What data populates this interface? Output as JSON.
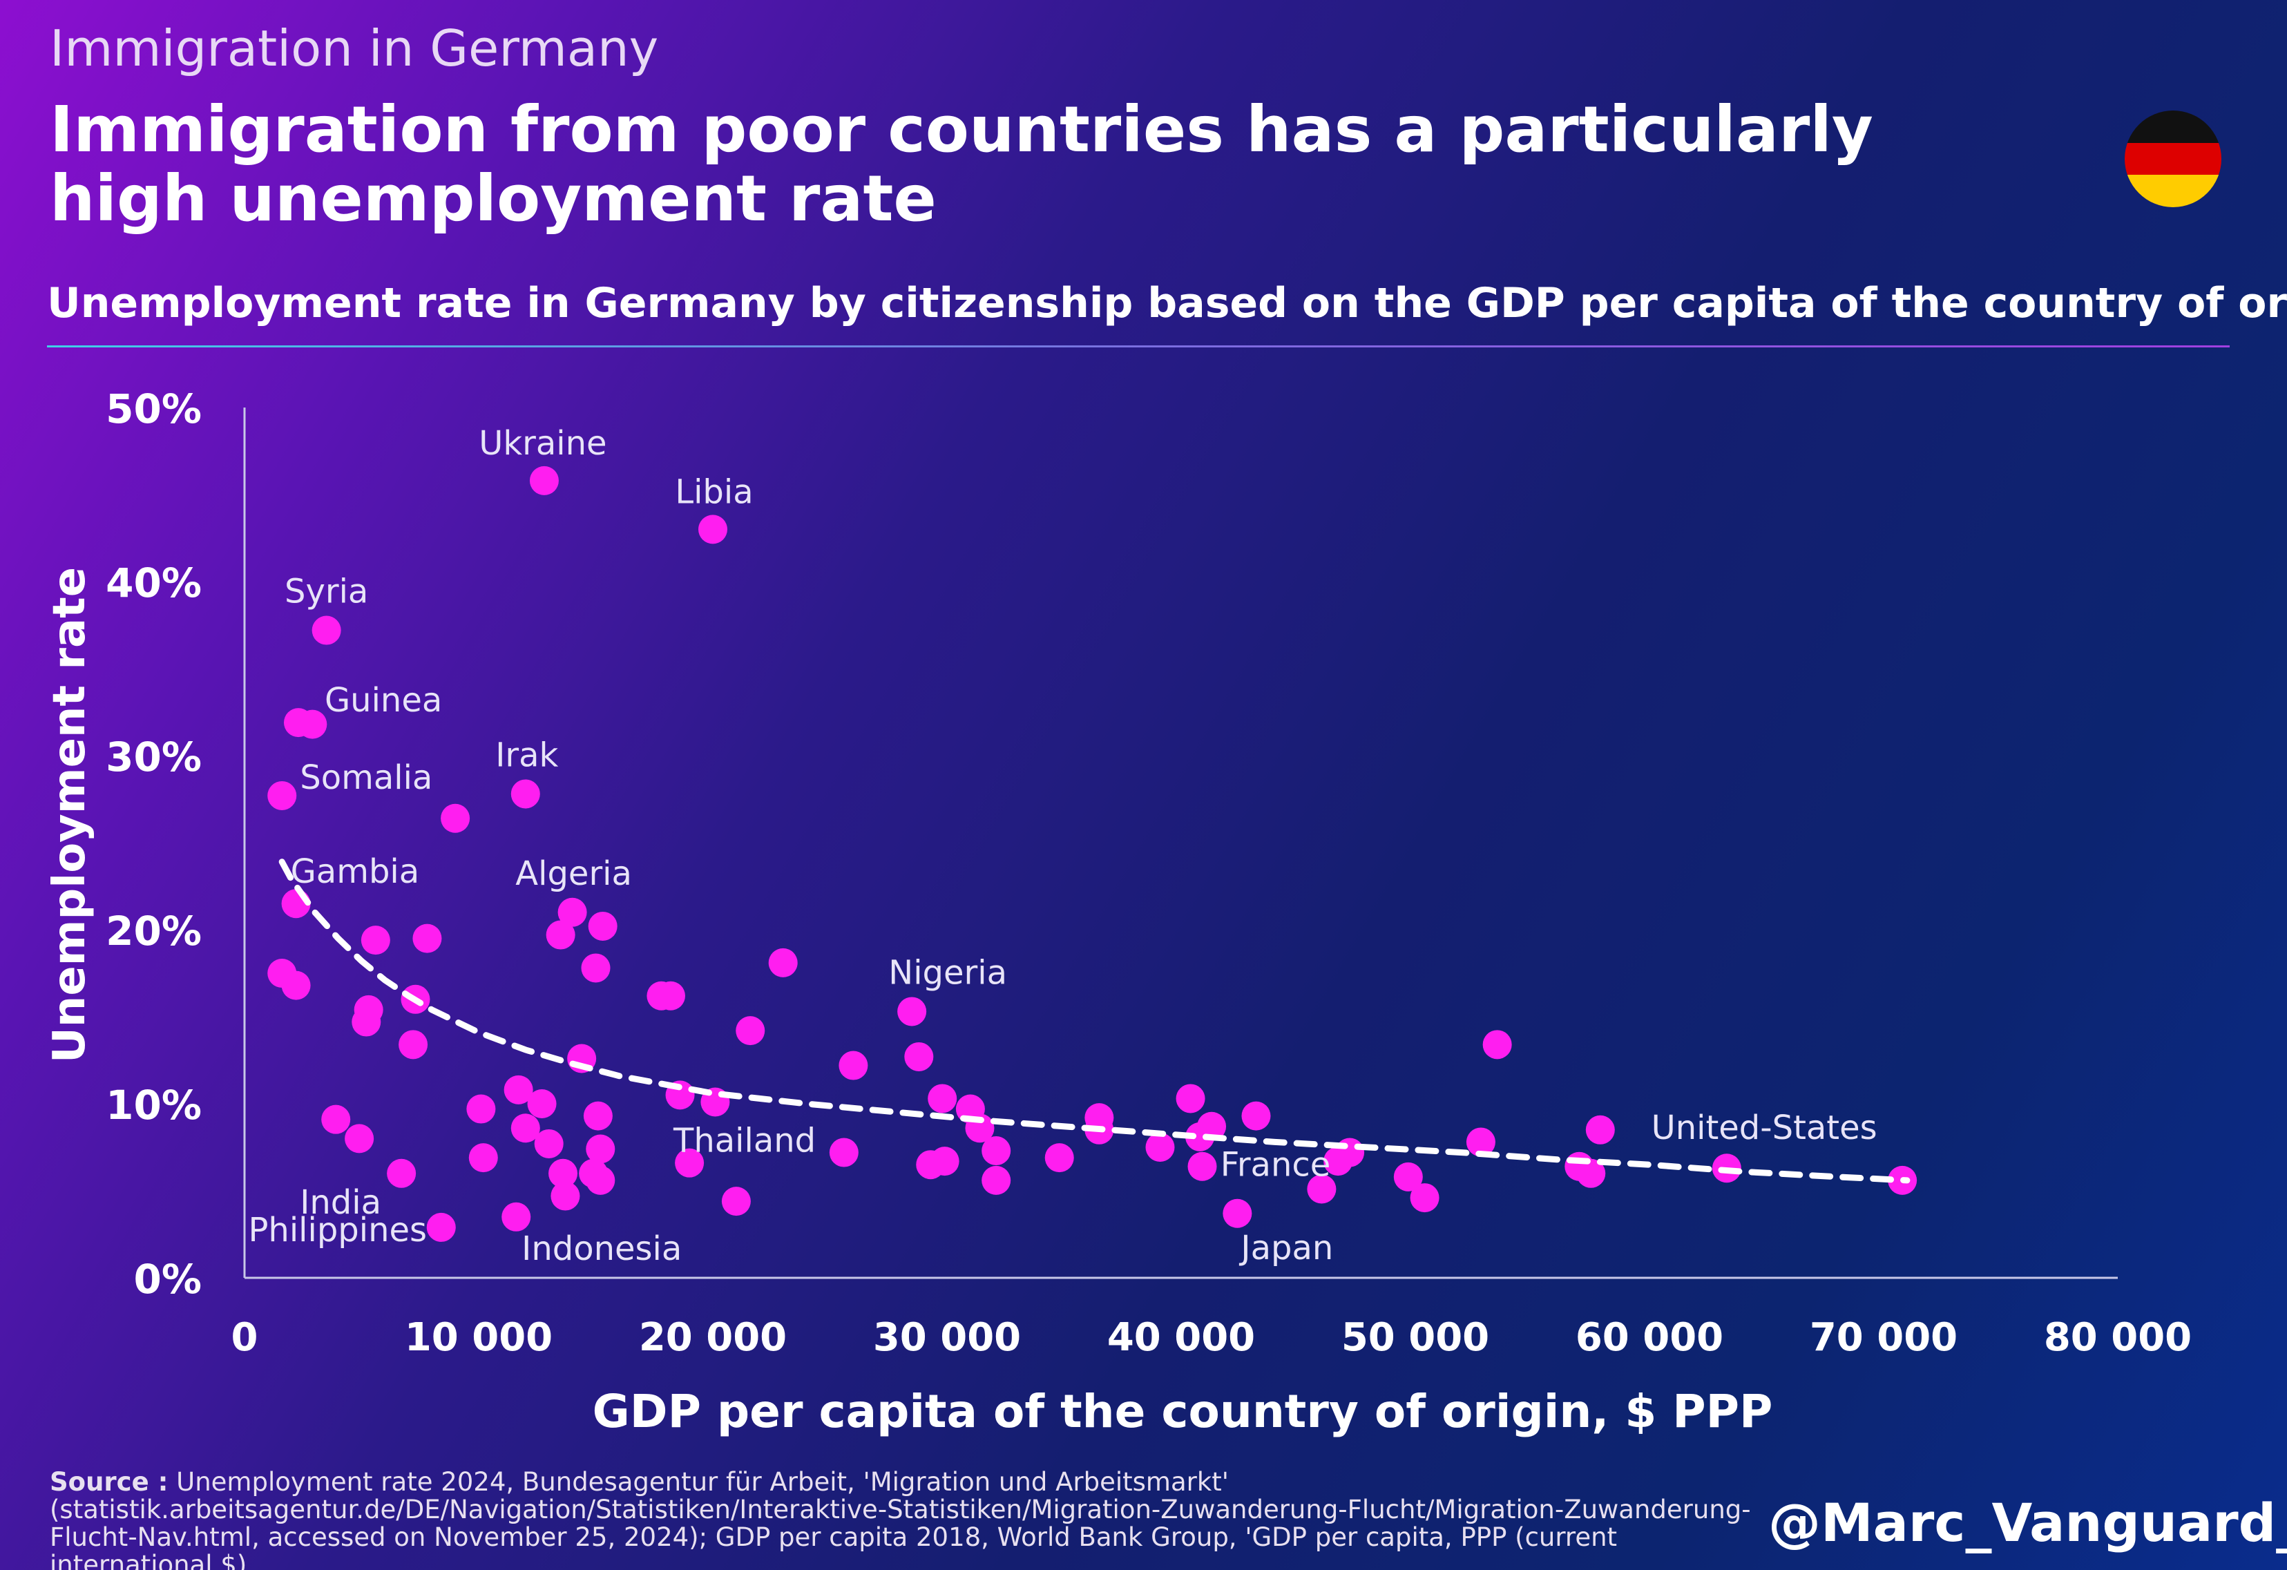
{
  "header": {
    "kicker": "Immigration in Germany",
    "title": "Immigration from poor countries has a particularly high unemployment rate",
    "subtitle": "Unemployment rate in Germany by citizenship based on the GDP per capita of the country of origin"
  },
  "flag": {
    "colors": [
      "#111111",
      "#dd0000",
      "#ffcc00"
    ]
  },
  "colors": {
    "point": "#ff1ef0",
    "trend": "#ffffff",
    "axis": "#c8c8e8"
  },
  "chart_data": {
    "type": "scatter",
    "xlabel": "GDP per capita of the country of origin, $ PPP",
    "ylabel": "Unemployment rate",
    "xlim": [
      0,
      80000
    ],
    "ylim": [
      0,
      50
    ],
    "x_ticks": [
      0,
      10000,
      20000,
      30000,
      40000,
      50000,
      60000,
      70000,
      80000
    ],
    "x_tick_labels": [
      "0",
      "10 000",
      "20 000",
      "30 000",
      "40 000",
      "50 000",
      "60 000",
      "70 000",
      "80 000"
    ],
    "y_ticks": [
      0,
      10,
      20,
      30,
      40,
      50
    ],
    "y_tick_labels": [
      "0%",
      "10%",
      "20%",
      "30%",
      "40%",
      "50%"
    ],
    "grid": false,
    "points": [
      {
        "x": 12800,
        "y": 45.8,
        "label": "Ukraine"
      },
      {
        "x": 20000,
        "y": 43.0,
        "label": "Libia"
      },
      {
        "x": 3500,
        "y": 37.2,
        "label": "Syria"
      },
      {
        "x": 2300,
        "y": 31.9,
        "label": "Guinea"
      },
      {
        "x": 2900,
        "y": 31.8
      },
      {
        "x": 1600,
        "y": 27.7,
        "label": "Somalia"
      },
      {
        "x": 12000,
        "y": 27.8,
        "label": "Irak"
      },
      {
        "x": 9000,
        "y": 26.4
      },
      {
        "x": 2200,
        "y": 21.5,
        "label": "Gambia"
      },
      {
        "x": 14000,
        "y": 21.0,
        "label": "Algeria"
      },
      {
        "x": 15300,
        "y": 20.2
      },
      {
        "x": 13500,
        "y": 19.7
      },
      {
        "x": 5600,
        "y": 19.4
      },
      {
        "x": 7800,
        "y": 19.5
      },
      {
        "x": 15000,
        "y": 17.8
      },
      {
        "x": 23000,
        "y": 18.1
      },
      {
        "x": 1600,
        "y": 17.5
      },
      {
        "x": 2200,
        "y": 16.8
      },
      {
        "x": 17800,
        "y": 16.2
      },
      {
        "x": 18200,
        "y": 16.2
      },
      {
        "x": 7300,
        "y": 16.0
      },
      {
        "x": 5300,
        "y": 15.4
      },
      {
        "x": 5200,
        "y": 14.7
      },
      {
        "x": 28500,
        "y": 15.3,
        "label": "Nigeria"
      },
      {
        "x": 21600,
        "y": 14.2
      },
      {
        "x": 7200,
        "y": 13.4
      },
      {
        "x": 53500,
        "y": 13.4
      },
      {
        "x": 14400,
        "y": 12.6
      },
      {
        "x": 28800,
        "y": 12.7
      },
      {
        "x": 26000,
        "y": 12.2
      },
      {
        "x": 11700,
        "y": 10.8
      },
      {
        "x": 18600,
        "y": 10.5
      },
      {
        "x": 20100,
        "y": 10.1
      },
      {
        "x": 12700,
        "y": 10.0
      },
      {
        "x": 29800,
        "y": 10.3
      },
      {
        "x": 40400,
        "y": 10.3
      },
      {
        "x": 31000,
        "y": 9.7
      },
      {
        "x": 10100,
        "y": 9.7
      },
      {
        "x": 15100,
        "y": 9.3
      },
      {
        "x": 43200,
        "y": 9.3
      },
      {
        "x": 36500,
        "y": 9.2
      },
      {
        "x": 3900,
        "y": 9.1
      },
      {
        "x": 41300,
        "y": 8.7
      },
      {
        "x": 12000,
        "y": 8.6
      },
      {
        "x": 31400,
        "y": 8.6
      },
      {
        "x": 36500,
        "y": 8.5
      },
      {
        "x": 40800,
        "y": 8.1
      },
      {
        "x": 57900,
        "y": 8.5
      },
      {
        "x": 4900,
        "y": 8.0
      },
      {
        "x": 13000,
        "y": 7.7
      },
      {
        "x": 52800,
        "y": 7.8
      },
      {
        "x": 39100,
        "y": 7.5
      },
      {
        "x": 32100,
        "y": 7.3
      },
      {
        "x": 15200,
        "y": 7.4
      },
      {
        "x": 47200,
        "y": 7.2
      },
      {
        "x": 25600,
        "y": 7.2
      },
      {
        "x": 10200,
        "y": 6.9
      },
      {
        "x": 34800,
        "y": 6.9
      },
      {
        "x": 29900,
        "y": 6.7
      },
      {
        "x": 46700,
        "y": 6.7
      },
      {
        "x": 19000,
        "y": 6.6,
        "label": "Thailand"
      },
      {
        "x": 29300,
        "y": 6.5
      },
      {
        "x": 40900,
        "y": 6.4,
        "label": "France"
      },
      {
        "x": 57000,
        "y": 6.4
      },
      {
        "x": 63300,
        "y": 6.3
      },
      {
        "x": 6700,
        "y": 6.0,
        "label": "India"
      },
      {
        "x": 13600,
        "y": 6.0
      },
      {
        "x": 14900,
        "y": 6.0
      },
      {
        "x": 57500,
        "y": 6.0
      },
      {
        "x": 49700,
        "y": 5.8
      },
      {
        "x": 15200,
        "y": 5.6
      },
      {
        "x": 70800,
        "y": 5.6,
        "label": "United-States"
      },
      {
        "x": 32100,
        "y": 5.6
      },
      {
        "x": 46000,
        "y": 5.1
      },
      {
        "x": 13700,
        "y": 4.7
      },
      {
        "x": 50400,
        "y": 4.6
      },
      {
        "x": 21000,
        "y": 4.4
      },
      {
        "x": 11600,
        "y": 3.5,
        "label": "Indonesia"
      },
      {
        "x": 42400,
        "y": 3.7,
        "label": "Japan"
      },
      {
        "x": 8400,
        "y": 2.9,
        "label": "Philippines"
      }
    ],
    "trend": {
      "type": "dashed",
      "points": [
        [
          1600,
          23.9
        ],
        [
          2000,
          22.9
        ],
        [
          3000,
          21.0
        ],
        [
          4000,
          19.5
        ],
        [
          5000,
          18.2
        ],
        [
          6000,
          17.1
        ],
        [
          7000,
          16.2
        ],
        [
          8000,
          15.4
        ],
        [
          10000,
          14.1
        ],
        [
          12000,
          13.1
        ],
        [
          14000,
          12.3
        ],
        [
          16000,
          11.6
        ],
        [
          18000,
          11.1
        ],
        [
          20000,
          10.6
        ],
        [
          24000,
          10.0
        ],
        [
          28000,
          9.5
        ],
        [
          32000,
          9.0
        ],
        [
          36000,
          8.6
        ],
        [
          40000,
          8.2
        ],
        [
          44000,
          7.8
        ],
        [
          48000,
          7.5
        ],
        [
          52000,
          7.2
        ],
        [
          56000,
          6.8
        ],
        [
          60000,
          6.5
        ],
        [
          64000,
          6.1
        ],
        [
          68000,
          5.8
        ],
        [
          71000,
          5.6
        ]
      ]
    }
  },
  "footer": {
    "source_label": "Source :",
    "source_text": "Unemployment rate 2024, Bundesagentur für Arbeit, 'Migration und Arbeitsmarkt' (statistik.arbeitsagentur.de/DE/Navigation/Statistiken/Interaktive-Statistiken/Migration-Zuwanderung-Flucht/Migration-Zuwanderung-Flucht-Nav.html, accessed on November 25, 2024); GDP per capita 2018, World Bank Group, 'GDP per capita, PPP (current international $)",
    "handle": "@Marc_Vanguard_i"
  }
}
